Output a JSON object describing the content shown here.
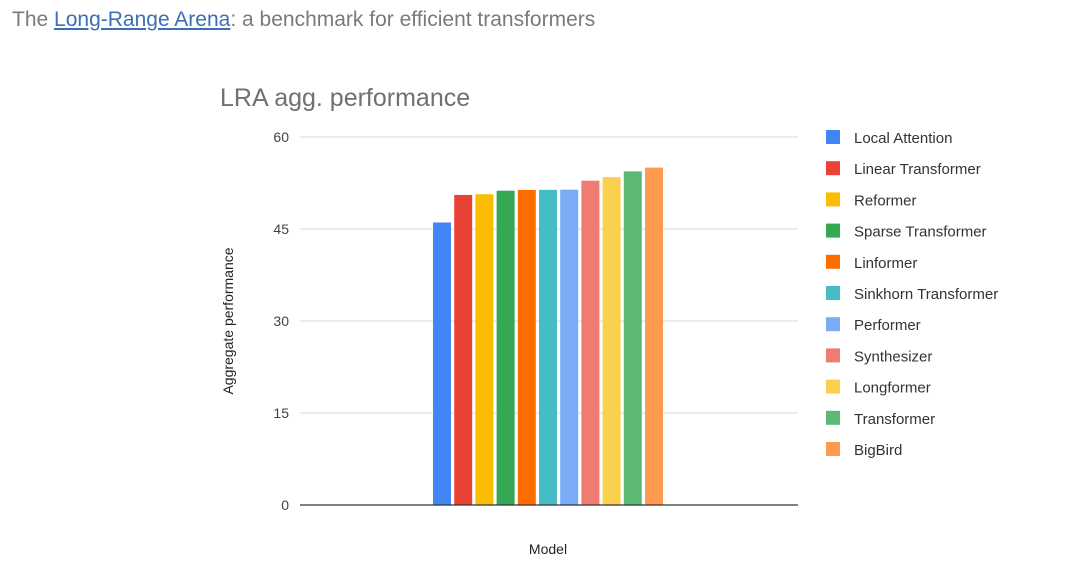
{
  "heading": {
    "prefix": "The ",
    "link_text": "Long-Range Arena",
    "suffix": ": a benchmark for efficient transformers"
  },
  "chart_data": {
    "type": "bar",
    "title": "LRA agg. performance",
    "xlabel": "Model",
    "ylabel": "Aggregate performance",
    "ylim": [
      0,
      60
    ],
    "yticks": [
      0,
      15,
      30,
      45,
      60
    ],
    "grid": true,
    "legend_position": "right",
    "series": [
      {
        "name": "Local Attention",
        "value": 46.06,
        "color": "#4285f4"
      },
      {
        "name": "Linear Transformer",
        "value": 50.55,
        "color": "#ea4335"
      },
      {
        "name": "Reformer",
        "value": 50.67,
        "color": "#fbbc04"
      },
      {
        "name": "Sparse Transformer",
        "value": 51.24,
        "color": "#34a853"
      },
      {
        "name": "Linformer",
        "value": 51.36,
        "color": "#ff6d01"
      },
      {
        "name": "Sinkhorn Transformer",
        "value": 51.39,
        "color": "#46bdc6"
      },
      {
        "name": "Performer",
        "value": 51.41,
        "color": "#7baaf7"
      },
      {
        "name": "Synthesizer",
        "value": 52.88,
        "color": "#f07b72"
      },
      {
        "name": "Longformer",
        "value": 53.46,
        "color": "#fcd04f"
      },
      {
        "name": "Transformer",
        "value": 54.39,
        "color": "#5bb974"
      },
      {
        "name": "BigBird",
        "value": 55.01,
        "color": "#ff994d"
      }
    ]
  }
}
